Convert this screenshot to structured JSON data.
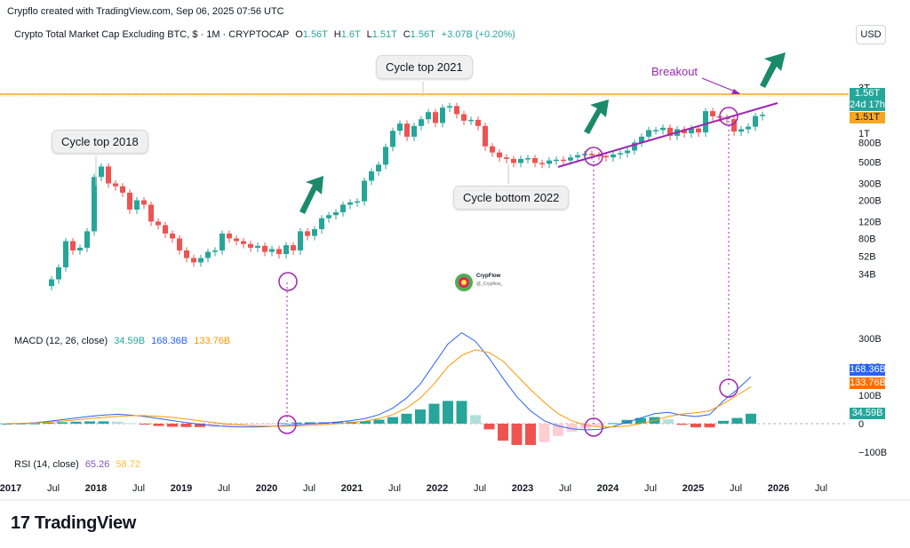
{
  "header": {
    "credit": "Crypflo created with TradingView.com, Sep 06, 2025 07:56 UTC",
    "symbol": "Crypto Total Market Cap Excluding BTC, $ · 1M · CRYPTOCAP",
    "ohlc": [
      {
        "k": "O",
        "v": "1.56T"
      },
      {
        "k": "H",
        "v": "1.6T"
      },
      {
        "k": "L",
        "v": "1.51T"
      },
      {
        "k": "C",
        "v": "1.56T"
      }
    ],
    "change": "+3.07B (+0.20%)",
    "currency": "USD"
  },
  "annotations": {
    "cycle_top_2018": "Cycle top 2018",
    "cycle_top_2021": "Cycle top 2021",
    "cycle_bottom_2022": "Cycle bottom 2022",
    "breakout": "Breakout"
  },
  "price_tags": {
    "last": "1.56T",
    "countdown": "24d 17h",
    "line": "1.51T"
  },
  "macd": {
    "label": "MACD (12, 26, close)",
    "hist": "34.59B",
    "macd": "168.36B",
    "signal": "133.76B"
  },
  "rsi": {
    "label": "RSI (14, close)",
    "value1": "65.26",
    "value2": "58.72"
  },
  "watermark": {
    "name": "CrypFlow",
    "handle": "@_Crypflow_"
  },
  "footer": "TradingView",
  "colors": {
    "up": "#26a69a",
    "down": "#ef5350",
    "macd": "#2962ff",
    "signal": "#ff9800",
    "breakout": "#9c27b0",
    "resistance": "#f5a623",
    "arrow": "#1b8a6b"
  },
  "chart_data": {
    "type": "candlestick",
    "log_scale": true,
    "price_axis_ticks": [
      "3T",
      "2T",
      "1T",
      "800B",
      "500B",
      "300B",
      "200B",
      "120B",
      "80B",
      "52B",
      "34B"
    ],
    "macd_axis_ticks": [
      "300B",
      "200B",
      "100B",
      "0",
      "−100B"
    ],
    "time_axis_ticks": [
      "2017",
      "Jul",
      "2018",
      "Jul",
      "2019",
      "Jul",
      "2020",
      "Jul",
      "2021",
      "Jul",
      "2022",
      "Jul",
      "2023",
      "Jul",
      "2024",
      "Jul",
      "2025",
      "Jul",
      "2026",
      "Jul"
    ],
    "candles_close_B": [
      30,
      40,
      75,
      60,
      64,
      95,
      350,
      450,
      300,
      280,
      240,
      160,
      200,
      180,
      120,
      110,
      90,
      80,
      60,
      50,
      45,
      50,
      58,
      60,
      90,
      80,
      75,
      70,
      64,
      67,
      58,
      62,
      55,
      68,
      60,
      95,
      85,
      100,
      130,
      140,
      150,
      180,
      190,
      195,
      320,
      400,
      470,
      720,
      1060,
      1260,
      920,
      1190,
      1400,
      1660,
      1280,
      1850,
      1920,
      1580,
      1350,
      1380,
      1190,
      730,
      630,
      560,
      540,
      490,
      540,
      550,
      490,
      480,
      520,
      530,
      520,
      560,
      590,
      610,
      590,
      580,
      560,
      600,
      620,
      660,
      800,
      920,
      1080,
      1080,
      1140,
      940,
      1100,
      1000,
      1120,
      1020,
      1700,
      1500,
      1450,
      1400,
      1040,
      1100,
      1170,
      1510,
      1560
    ],
    "macd_series": [
      {
        "name": "MACD",
        "values": [
          0,
          1,
          3,
          8,
          14,
          20,
          26,
          30,
          33,
          30,
          25,
          18,
          11,
          4,
          -2,
          -7,
          -10,
          -12,
          -12,
          -10,
          -7,
          -4,
          -1,
          2,
          6,
          11,
          18,
          32,
          55,
          90,
          140,
          210,
          280,
          320,
          290,
          230,
          160,
          95,
          45,
          10,
          -8,
          -18,
          -22,
          -20,
          -10,
          5,
          20,
          35,
          40,
          30,
          25,
          32,
          80,
          120,
          165
        ]
      },
      {
        "name": "Signal",
        "values": [
          0,
          0.5,
          2,
          5,
          9,
          13,
          18,
          22,
          26,
          28,
          28,
          26,
          22,
          16,
          10,
          4,
          -1,
          -5,
          -8,
          -9,
          -9,
          -8,
          -6,
          -3,
          0,
          4,
          9,
          18,
          32,
          55,
          90,
          140,
          200,
          240,
          260,
          250,
          220,
          170,
          120,
          75,
          35,
          10,
          -5,
          -12,
          -12,
          -8,
          0,
          12,
          25,
          34,
          38,
          45,
          70,
          100,
          130
        ]
      }
    ],
    "macd_hist_B": [
      34.59
    ],
    "resistance_level": "1.51T",
    "support_trendline": "rising from mid-2023 lows to 2025"
  }
}
